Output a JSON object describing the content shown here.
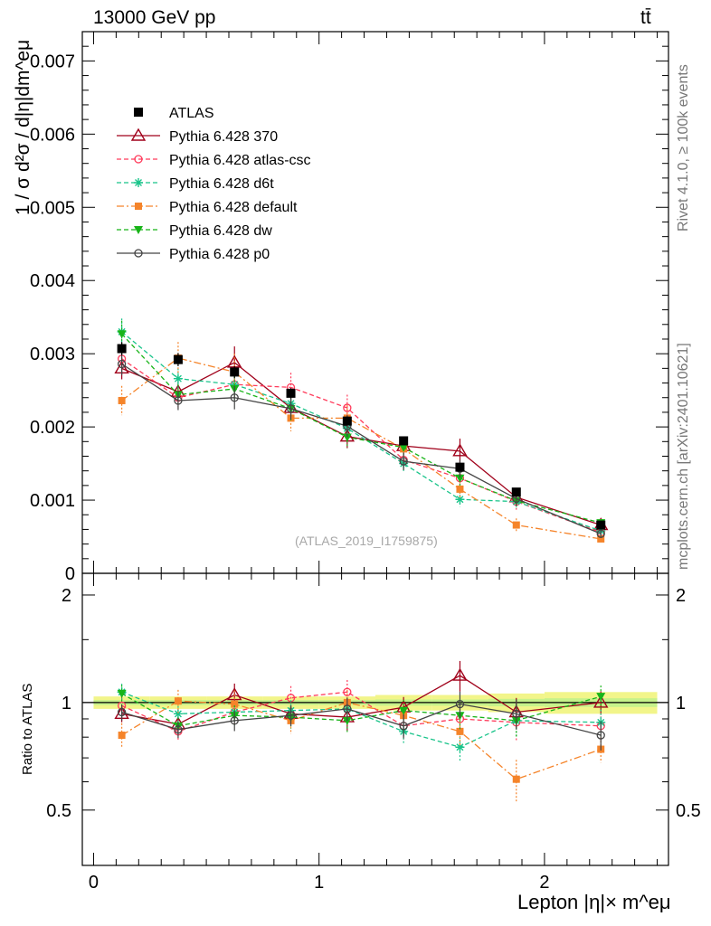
{
  "header": {
    "energy_label": "13000 GeV pp",
    "process_label": "tt̄"
  },
  "side": {
    "rivet_label": "Rivet 4.1.0, ≥ 100k events",
    "source_label": "mcplots.cern.ch [arXiv:2401.10621]"
  },
  "chart_data": {
    "type": "line",
    "analysis_tag": "(ATLAS_2019_I1759875)",
    "ylabel": "1 / σ  d²σ / d|η|dm^eμ",
    "ratio_ylabel": "Ratio to ATLAS",
    "xlabel": "Lepton |η|× m^eμ",
    "xlim": [
      -0.05,
      2.55
    ],
    "ylim": [
      0,
      0.0074
    ],
    "ratio_ylim": [
      0.35,
      2.3
    ],
    "x_ticks": [
      "0",
      "1",
      "2"
    ],
    "y_ticks": [
      "0",
      "0.001",
      "0.002",
      "0.003",
      "0.004",
      "0.005",
      "0.006",
      "0.007"
    ],
    "ratio_ticks": [
      "0.5",
      "1",
      "2"
    ],
    "x": [
      0.125,
      0.375,
      0.625,
      0.875,
      1.125,
      1.375,
      1.625,
      1.875,
      2.25
    ],
    "data": {
      "name": "ATLAS",
      "values": [
        0.00307,
        0.00292,
        0.00275,
        0.00246,
        0.00208,
        0.00181,
        0.00145,
        0.00111,
        0.00066
      ],
      "errors": [
        9e-05,
        9e-05,
        8e-05,
        7e-05,
        6e-05,
        5e-05,
        5e-05,
        4e-05,
        3e-05
      ],
      "ratio_band": [
        0.04,
        0.04,
        0.04,
        0.04,
        0.04,
        0.05,
        0.05,
        0.06,
        0.07
      ]
    },
    "series": [
      {
        "name": "Pythia 6.428 370",
        "color": "#a0001a",
        "style": "solid",
        "marker": "triangle-open",
        "values": [
          0.0028,
          0.00248,
          0.00288,
          0.00226,
          0.00187,
          0.00174,
          0.00167,
          0.00104,
          0.00066
        ],
        "errors": [
          0.00015,
          0.00013,
          0.00022,
          0.00013,
          0.00016,
          0.00012,
          0.00017,
          0.0001,
          5e-05
        ],
        "ratio": [
          0.93,
          0.87,
          1.05,
          0.93,
          0.91,
          0.97,
          1.19,
          0.94,
          1.0
        ]
      },
      {
        "name": "Pythia 6.428 atlas-csc",
        "color": "#ff3b5b",
        "style": "dashed",
        "marker": "circle-open",
        "values": [
          0.00293,
          0.0024,
          0.00258,
          0.00254,
          0.00226,
          0.00155,
          0.0013,
          0.00098,
          0.00056
        ],
        "errors": [
          0.00016,
          0.00013,
          0.00019,
          0.0002,
          0.00018,
          0.00013,
          0.00013,
          0.00011,
          5e-05
        ],
        "ratio": [
          0.98,
          0.83,
          0.94,
          1.03,
          1.07,
          0.86,
          0.9,
          0.88,
          0.86
        ]
      },
      {
        "name": "Pythia 6.428 d6t",
        "color": "#19c48a",
        "style": "dashed",
        "marker": "star",
        "values": [
          0.0033,
          0.00266,
          0.00258,
          0.00232,
          0.00198,
          0.0015,
          0.00101,
          0.00098,
          0.00058
        ],
        "errors": [
          0.00018,
          0.00014,
          0.00018,
          0.00016,
          0.00015,
          0.00012,
          0.0001,
          0.0001,
          5e-05
        ],
        "ratio": [
          1.07,
          0.93,
          0.94,
          0.95,
          0.96,
          0.83,
          0.75,
          0.89,
          0.88
        ]
      },
      {
        "name": "Pythia 6.428 default",
        "color": "#f5842a",
        "style": "dashdot",
        "marker": "square",
        "values": [
          0.00236,
          0.00294,
          0.00275,
          0.00212,
          0.00212,
          0.0017,
          0.00115,
          0.00066,
          0.00047
        ],
        "errors": [
          0.0002,
          0.00022,
          0.00025,
          0.00018,
          0.00018,
          0.00013,
          0.00011,
          9e-05,
          4e-05
        ],
        "ratio": [
          0.81,
          1.01,
          0.99,
          0.89,
          1.0,
          0.92,
          0.83,
          0.61,
          0.74
        ]
      },
      {
        "name": "Pythia 6.428 dw",
        "color": "#18b418",
        "style": "dashed",
        "marker": "triangle-down",
        "values": [
          0.00327,
          0.00244,
          0.00252,
          0.00225,
          0.00186,
          0.00172,
          0.0013,
          0.00099,
          0.00069
        ],
        "errors": [
          0.00018,
          0.00014,
          0.00017,
          0.00016,
          0.00015,
          0.00012,
          0.00012,
          0.0001,
          5e-05
        ],
        "ratio": [
          1.06,
          0.86,
          0.92,
          0.91,
          0.89,
          0.95,
          0.92,
          0.89,
          1.04
        ]
      },
      {
        "name": "Pythia 6.428 p0",
        "color": "#444444",
        "style": "solid",
        "marker": "circle-open",
        "values": [
          0.00286,
          0.00236,
          0.0024,
          0.00225,
          0.00201,
          0.00153,
          0.00143,
          0.00102,
          0.00054
        ],
        "errors": [
          0.00015,
          0.00013,
          0.00016,
          0.00015,
          0.00015,
          0.00012,
          0.00012,
          0.0001,
          5e-05
        ],
        "ratio": [
          0.94,
          0.84,
          0.89,
          0.92,
          0.96,
          0.86,
          0.99,
          0.93,
          0.81
        ]
      }
    ]
  }
}
